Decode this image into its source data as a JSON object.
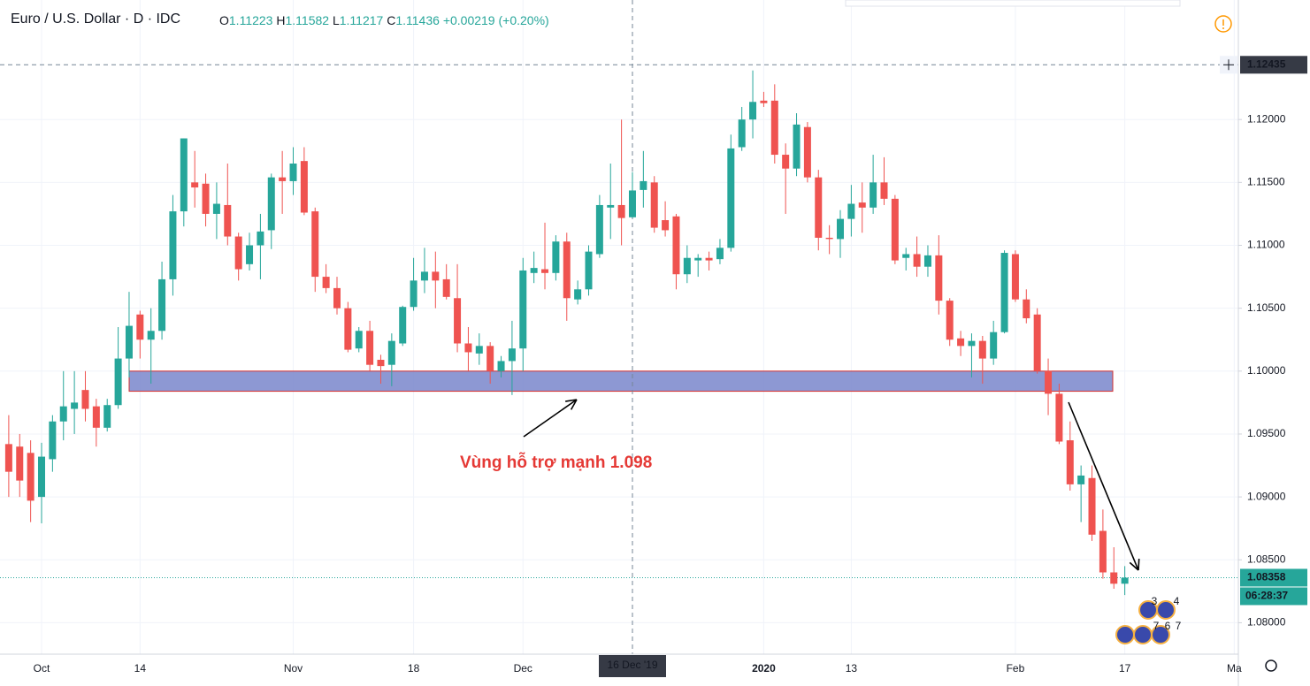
{
  "chart_data": {
    "type": "candlestick",
    "title": "Euro / U.S. Dollar · D · IDC",
    "ohlc_letters": [
      "O",
      "H",
      "L",
      "C"
    ],
    "change": "+0.00219",
    "change_percent": "(+0.20%)",
    "annotation": "Vùng hỗ trợ mạnh 1.098",
    "support_zone": [
      1.0984,
      1.1
    ],
    "crosshair": {
      "price": 1.12435,
      "date": "16 Dec '19"
    },
    "countdown": "06:28:37",
    "event_badges": [
      "3",
      "4",
      "7",
      "6",
      "7"
    ],
    "up_color": "#26a69a",
    "down_color": "#ef5350",
    "zone_color": "#7986cb",
    "grid": true,
    "ylim": [
      1.0775,
      1.1295
    ],
    "yticks": [
      {
        "value": 1.08,
        "label": "1.08000"
      },
      {
        "value": 1.085,
        "label": "1.08500"
      },
      {
        "value": 1.09,
        "label": "1.09000"
      },
      {
        "value": 1.095,
        "label": "1.09500"
      },
      {
        "value": 1.1,
        "label": "1.10000"
      },
      {
        "value": 1.105,
        "label": "1.10500"
      },
      {
        "value": 1.11,
        "label": "1.11000"
      },
      {
        "value": 1.115,
        "label": "1.11500"
      },
      {
        "value": 1.12,
        "label": "1.12000"
      }
    ],
    "categories": [
      null,
      null,
      null,
      "Oct",
      null,
      null,
      null,
      null,
      null,
      null,
      null,
      null,
      "14",
      null,
      null,
      null,
      null,
      null,
      null,
      null,
      null,
      null,
      null,
      null,
      null,
      null,
      "Nov",
      null,
      null,
      null,
      null,
      null,
      null,
      null,
      null,
      null,
      null,
      "18",
      null,
      null,
      null,
      null,
      null,
      null,
      null,
      null,
      null,
      "Dec",
      null,
      null,
      null,
      null,
      null,
      null,
      null,
      null,
      null,
      null,
      null,
      null,
      null,
      null,
      null,
      null,
      null,
      null,
      null,
      null,
      null,
      "2020",
      null,
      null,
      null,
      null,
      null,
      null,
      null,
      "13",
      null,
      null,
      null,
      null,
      null,
      null,
      null,
      null,
      null,
      null,
      null,
      null,
      null,
      null,
      "Feb",
      null,
      null,
      null,
      null,
      null,
      null,
      null,
      null,
      null,
      "17",
      null,
      null,
      null,
      null,
      null,
      null,
      null,
      null,
      null,
      "Ma"
    ],
    "open": [
      1.0942,
      1.094,
      1.0935,
      1.09,
      1.093,
      1.096,
      1.097,
      1.0985,
      1.0972,
      1.0955,
      1.0973,
      1.101,
      1.1045,
      1.1025,
      1.1032,
      1.1073,
      1.1127,
      1.115,
      1.1149,
      1.1125,
      1.1132,
      1.1107,
      1.1085,
      1.11,
      1.1112,
      1.1154,
      1.1151,
      1.1167,
      1.1127,
      1.1075,
      1.1066,
      1.105,
      1.1018,
      1.1032,
      1.1009,
      1.1005,
      1.1022,
      1.1051,
      1.1072,
      1.1079,
      1.1073,
      1.1058,
      1.1022,
      1.1014,
      1.102,
      1.1,
      1.1008,
      1.1018,
      1.1078,
      1.1081,
      1.1078,
      1.1103,
      1.1057,
      1.1065,
      1.1093,
      1.113,
      1.1132,
      1.11223,
      1.1144,
      1.115,
      1.112,
      1.1123,
      1.1077,
      1.1088,
      1.109,
      1.1089,
      1.1098,
      1.1178,
      1.12,
      1.1215,
      1.1215,
      1.1172,
      1.1161,
      1.1194,
      1.1154,
      1.1106,
      1.1105,
      1.1121,
      1.1134,
      1.113,
      1.115,
      1.1137,
      1.109,
      1.1093,
      1.1083,
      1.1092,
      1.1056,
      1.1026,
      1.102,
      1.1024,
      1.101,
      1.1031,
      1.1093,
      1.1057,
      1.1045,
      1.1,
      1.0982,
      1.0945,
      1.091,
      1.0915,
      1.0873,
      1.084,
      1.0831,
      null,
      null,
      null,
      null,
      null,
      null,
      null,
      null,
      null,
      null
    ],
    "high": [
      1.0965,
      1.095,
      1.0945,
      1.0943,
      1.0965,
      1.1,
      1.1,
      1.1,
      1.0978,
      1.0978,
      1.1035,
      1.1063,
      1.1048,
      1.105,
      1.1087,
      1.114,
      1.1185,
      1.1175,
      1.1157,
      1.115,
      1.1165,
      1.111,
      1.111,
      1.1125,
      1.1157,
      1.1175,
      1.1178,
      1.1178,
      1.113,
      1.1085,
      1.1075,
      1.1055,
      1.1035,
      1.104,
      1.1013,
      1.103,
      1.1052,
      1.109,
      1.1098,
      1.1095,
      1.1085,
      1.1085,
      1.1035,
      1.103,
      1.1023,
      1.1012,
      1.104,
      1.109,
      1.1095,
      1.1118,
      1.1108,
      1.111,
      1.1072,
      1.11,
      1.114,
      1.1165,
      1.12,
      1.11582,
      1.1175,
      1.1155,
      1.1135,
      1.1125,
      1.11,
      1.1093,
      1.1095,
      1.1105,
      1.1188,
      1.121,
      1.1239,
      1.1222,
      1.1228,
      1.1181,
      1.1205,
      1.1198,
      1.116,
      1.1116,
      1.1128,
      1.1148,
      1.115,
      1.1172,
      1.117,
      1.114,
      1.1098,
      1.1107,
      1.11,
      1.1108,
      1.1058,
      1.1032,
      1.103,
      1.1028,
      1.104,
      1.1096,
      1.1096,
      1.1065,
      1.105,
      1.101,
      1.099,
      1.096,
      1.0925,
      1.0925,
      1.089,
      1.086,
      1.0845,
      null,
      null,
      null,
      null,
      null,
      null,
      null,
      null,
      null,
      null
    ],
    "low": [
      1.09,
      1.09,
      1.088,
      1.0879,
      1.092,
      1.0945,
      1.095,
      1.096,
      1.094,
      1.0952,
      1.097,
      1.0995,
      1.101,
      1.099,
      1.1025,
      1.106,
      1.1115,
      1.113,
      1.1115,
      1.1105,
      1.11,
      1.1072,
      1.108,
      1.1073,
      1.1097,
      1.1125,
      1.114,
      1.1124,
      1.1063,
      1.1062,
      1.1045,
      1.1015,
      1.1015,
      1.1,
      1.099,
      1.0988,
      1.102,
      1.1048,
      1.1062,
      1.105,
      1.1057,
      1.1015,
      1.1,
      1.1005,
      1.099,
      1.0995,
      1.0981,
      1.1,
      1.107,
      1.1065,
      1.1072,
      1.104,
      1.1053,
      1.106,
      1.109,
      1.1105,
      1.11,
      1.11217,
      1.113,
      1.111,
      1.1107,
      1.1065,
      1.107,
      1.1075,
      1.108,
      1.1085,
      1.1095,
      1.1175,
      1.1185,
      1.121,
      1.1165,
      1.1125,
      1.1155,
      1.115,
      1.1096,
      1.1093,
      1.109,
      1.1107,
      1.111,
      1.1125,
      1.1132,
      1.1085,
      1.108,
      1.1075,
      1.1075,
      1.1045,
      1.102,
      1.1012,
      1.0995,
      1.099,
      1.1005,
      1.103,
      1.1055,
      1.1038,
      1.0998,
      1.0965,
      1.0942,
      1.0905,
      1.088,
      1.0865,
      1.0835,
      1.0827,
      1.0822,
      null,
      null,
      null,
      null,
      null,
      null,
      null,
      null,
      null,
      null
    ],
    "close": [
      1.092,
      1.0913,
      1.0897,
      1.0932,
      1.096,
      1.0972,
      1.0975,
      1.097,
      1.0955,
      1.0973,
      1.101,
      1.1036,
      1.1025,
      1.1032,
      1.1073,
      1.1127,
      1.1185,
      1.1146,
      1.1125,
      1.1133,
      1.1107,
      1.1081,
      1.11,
      1.1111,
      1.1154,
      1.1151,
      1.1165,
      1.1126,
      1.1075,
      1.1066,
      1.105,
      1.1017,
      1.1032,
      1.1005,
      1.1004,
      1.1024,
      1.1051,
      1.1072,
      1.1079,
      1.1072,
      1.1059,
      1.1022,
      1.1015,
      1.102,
      1.1,
      1.1008,
      1.1018,
      1.108,
      1.1082,
      1.1078,
      1.1103,
      1.1058,
      1.1065,
      1.1095,
      1.1132,
      1.1132,
      1.11217,
      1.11436,
      1.1151,
      1.1114,
      1.1112,
      1.1077,
      1.109,
      1.109,
      1.1088,
      1.1098,
      1.1177,
      1.12,
      1.1214,
      1.1213,
      1.1172,
      1.1161,
      1.1196,
      1.1154,
      1.1106,
      1.1105,
      1.1121,
      1.1133,
      1.113,
      1.115,
      1.1137,
      1.1088,
      1.1093,
      1.1083,
      1.1092,
      1.1056,
      1.1025,
      1.102,
      1.1024,
      1.101,
      1.1031,
      1.1094,
      1.1057,
      1.1042,
      1.1,
      1.0982,
      1.0944,
      1.091,
      1.0917,
      1.087,
      1.084,
      1.0831,
      1.08358,
      null,
      null,
      null,
      null,
      null,
      null,
      null,
      null,
      null,
      null
    ]
  }
}
